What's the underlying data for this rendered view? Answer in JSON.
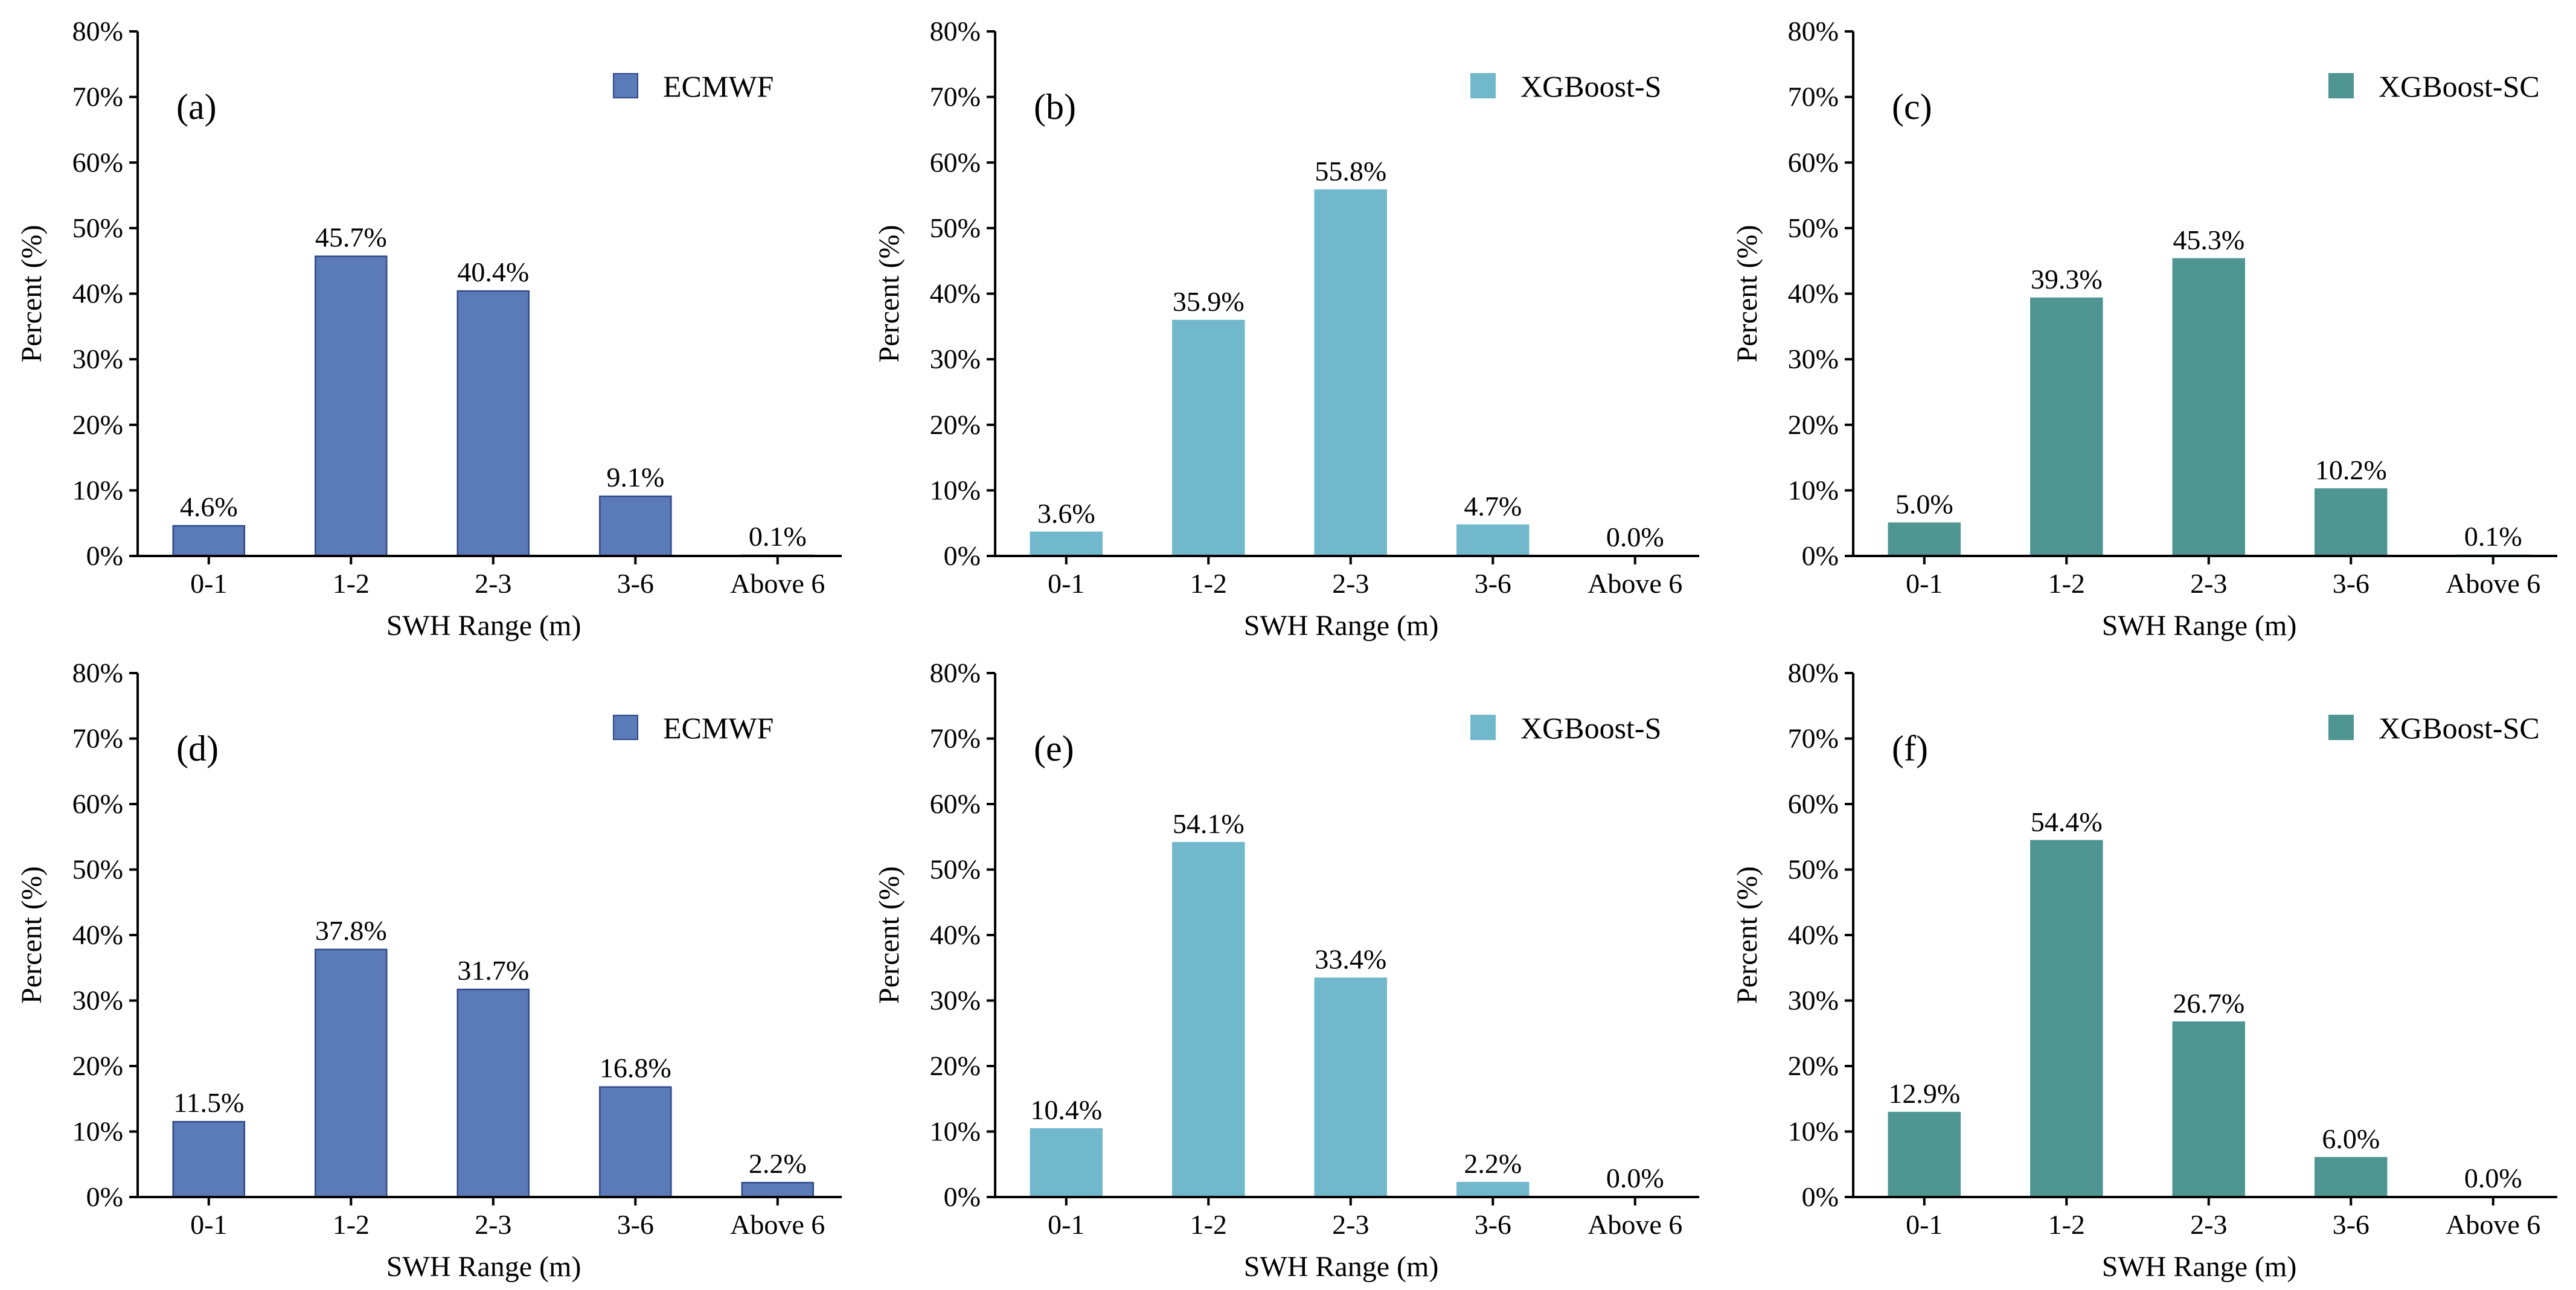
{
  "chart_data": [
    {
      "type": "bar",
      "panel_label": "(a)",
      "legend": "ECMWF",
      "color": "#5b7ab8",
      "edge_color": "#2f4a86",
      "categories": [
        "0-1",
        "1-2",
        "2-3",
        "3-6",
        "Above 6"
      ],
      "values": [
        4.6,
        45.7,
        40.4,
        9.1,
        0.1
      ],
      "value_labels": [
        "4.6%",
        "45.7%",
        "40.4%",
        "9.1%",
        "0.1%"
      ],
      "xlabel": "SWH Range (m)",
      "ylabel": "Percent (%)",
      "ylim": [
        0,
        80
      ],
      "yticks": [
        "0%",
        "10%",
        "20%",
        "30%",
        "40%",
        "50%",
        "60%",
        "70%",
        "80%"
      ]
    },
    {
      "type": "bar",
      "panel_label": "(b)",
      "legend": "XGBoost-S",
      "color": "#72b8cc",
      "edge_color": "#72b8cc",
      "categories": [
        "0-1",
        "1-2",
        "2-3",
        "3-6",
        "Above 6"
      ],
      "values": [
        3.6,
        35.9,
        55.8,
        4.7,
        0.0
      ],
      "value_labels": [
        "3.6%",
        "35.9%",
        "55.8%",
        "4.7%",
        "0.0%"
      ],
      "xlabel": "SWH Range (m)",
      "ylabel": "Percent (%)",
      "ylim": [
        0,
        80
      ],
      "yticks": [
        "0%",
        "10%",
        "20%",
        "30%",
        "40%",
        "50%",
        "60%",
        "70%",
        "80%"
      ]
    },
    {
      "type": "bar",
      "panel_label": "(c)",
      "legend": "XGBoost-SC",
      "color": "#4f9693",
      "edge_color": "#4f9693",
      "categories": [
        "0-1",
        "1-2",
        "2-3",
        "3-6",
        "Above 6"
      ],
      "values": [
        5.0,
        39.3,
        45.3,
        10.2,
        0.1
      ],
      "value_labels": [
        "5.0%",
        "39.3%",
        "45.3%",
        "10.2%",
        "0.1%"
      ],
      "xlabel": "SWH Range (m)",
      "ylabel": "Percent (%)",
      "ylim": [
        0,
        80
      ],
      "yticks": [
        "0%",
        "10%",
        "20%",
        "30%",
        "40%",
        "50%",
        "60%",
        "70%",
        "80%"
      ]
    },
    {
      "type": "bar",
      "panel_label": "(d)",
      "legend": "ECMWF",
      "color": "#5b7ab8",
      "edge_color": "#2f4a86",
      "categories": [
        "0-1",
        "1-2",
        "2-3",
        "3-6",
        "Above 6"
      ],
      "values": [
        11.5,
        37.8,
        31.7,
        16.8,
        2.2
      ],
      "value_labels": [
        "11.5%",
        "37.8%",
        "31.7%",
        "16.8%",
        "2.2%"
      ],
      "xlabel": "SWH Range (m)",
      "ylabel": "Percent (%)",
      "ylim": [
        0,
        80
      ],
      "yticks": [
        "0%",
        "10%",
        "20%",
        "30%",
        "40%",
        "50%",
        "60%",
        "70%",
        "80%"
      ]
    },
    {
      "type": "bar",
      "panel_label": "(e)",
      "legend": "XGBoost-S",
      "color": "#72b8cc",
      "edge_color": "#72b8cc",
      "categories": [
        "0-1",
        "1-2",
        "2-3",
        "3-6",
        "Above 6"
      ],
      "values": [
        10.4,
        54.1,
        33.4,
        2.2,
        0.0
      ],
      "value_labels": [
        "10.4%",
        "54.1%",
        "33.4%",
        "2.2%",
        "0.0%"
      ],
      "xlabel": "SWH Range (m)",
      "ylabel": "Percent (%)",
      "ylim": [
        0,
        80
      ],
      "yticks": [
        "0%",
        "10%",
        "20%",
        "30%",
        "40%",
        "50%",
        "60%",
        "70%",
        "80%"
      ]
    },
    {
      "type": "bar",
      "panel_label": "(f)",
      "legend": "XGBoost-SC",
      "color": "#4f9693",
      "edge_color": "#4f9693",
      "categories": [
        "0-1",
        "1-2",
        "2-3",
        "3-6",
        "Above 6"
      ],
      "values": [
        12.9,
        54.4,
        26.7,
        6.0,
        0.0
      ],
      "value_labels": [
        "12.9%",
        "54.4%",
        "26.7%",
        "6.0%",
        "0.0%"
      ],
      "xlabel": "SWH Range (m)",
      "ylabel": "Percent (%)",
      "ylim": [
        0,
        80
      ],
      "yticks": [
        "0%",
        "10%",
        "20%",
        "30%",
        "40%",
        "50%",
        "60%",
        "70%",
        "80%"
      ]
    }
  ]
}
